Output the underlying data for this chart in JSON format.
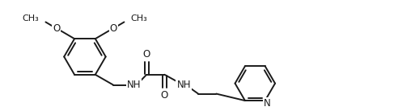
{
  "bg_color": "#ffffff",
  "line_color": "#1a1a1a",
  "line_width": 1.4,
  "font_size": 8.5,
  "figw": 4.92,
  "figh": 1.38,
  "dpi": 100,
  "xlim": [
    0,
    9.8
  ],
  "ylim": [
    0,
    2.76
  ]
}
